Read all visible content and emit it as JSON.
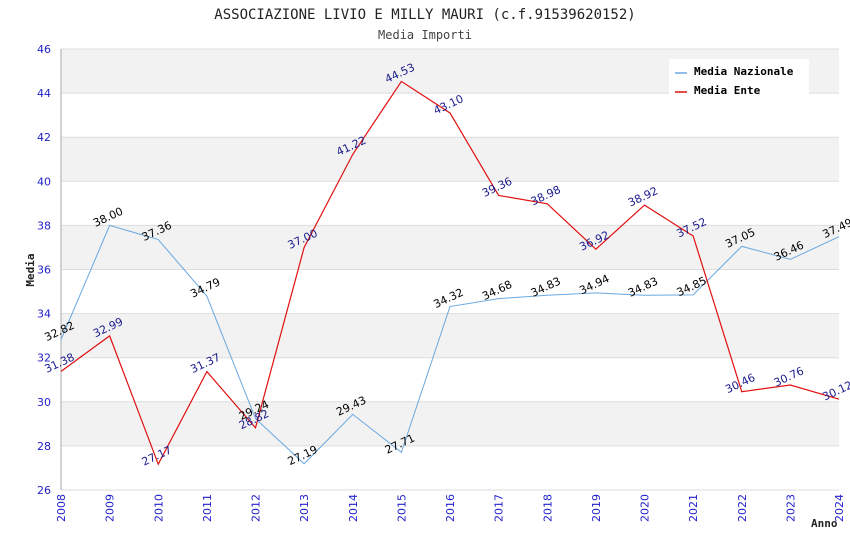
{
  "chart_data": {
    "type": "line",
    "title": "ASSOCIAZIONE LIVIO E MILLY MAURI (c.f.91539620152)",
    "subtitle": "Media Importi",
    "xlabel": "Anno",
    "ylabel": "Media",
    "ylim": [
      26,
      46
    ],
    "y_ticks": [
      "26",
      "28",
      "30",
      "32",
      "34",
      "36",
      "38",
      "40",
      "42",
      "44",
      "46"
    ],
    "categories": [
      "2008",
      "2009",
      "2010",
      "2011",
      "2012",
      "2013",
      "2014",
      "2015",
      "2016",
      "2017",
      "2018",
      "2019",
      "2020",
      "2021",
      "2022",
      "2023",
      "2024"
    ],
    "legend_position": "top-right",
    "grid": true,
    "series": [
      {
        "name": "Media Nazionale",
        "color": "#6aa8e0",
        "label_color": "#000000",
        "values": [
          32.82,
          38.0,
          37.36,
          34.79,
          29.24,
          27.19,
          29.43,
          27.71,
          34.32,
          34.68,
          34.83,
          34.94,
          34.83,
          34.85,
          37.05,
          36.46,
          37.49
        ],
        "labels": [
          "32.82",
          "38.00",
          "37.36",
          "34.79",
          "29.24",
          "27.19",
          "29.43",
          "27.71",
          "34.32",
          "34.68",
          "34.83",
          "34.94",
          "34.83",
          "34.85",
          "37.05",
          "36.46",
          "37.49"
        ]
      },
      {
        "name": "Media Ente",
        "color": "#e01010",
        "label_color": "#1a1a8c",
        "values": [
          31.38,
          32.99,
          27.17,
          31.37,
          28.82,
          37.0,
          41.22,
          44.53,
          43.1,
          39.36,
          38.98,
          36.92,
          38.92,
          37.52,
          30.46,
          30.76,
          30.12
        ],
        "labels": [
          "31.38",
          "32.99",
          "27.17",
          "31.37",
          "28.82",
          "37.00",
          "41.22",
          "44.53",
          "43.10",
          "39.36",
          "38.98",
          "36.92",
          "38.92",
          "37.52",
          "30.46",
          "30.76",
          "30.12"
        ]
      }
    ],
    "colors": {
      "tick_label": "#2222cc",
      "grid": "#dddddd",
      "band": "#f2f2f2",
      "axis": "#aaaaaa"
    }
  }
}
